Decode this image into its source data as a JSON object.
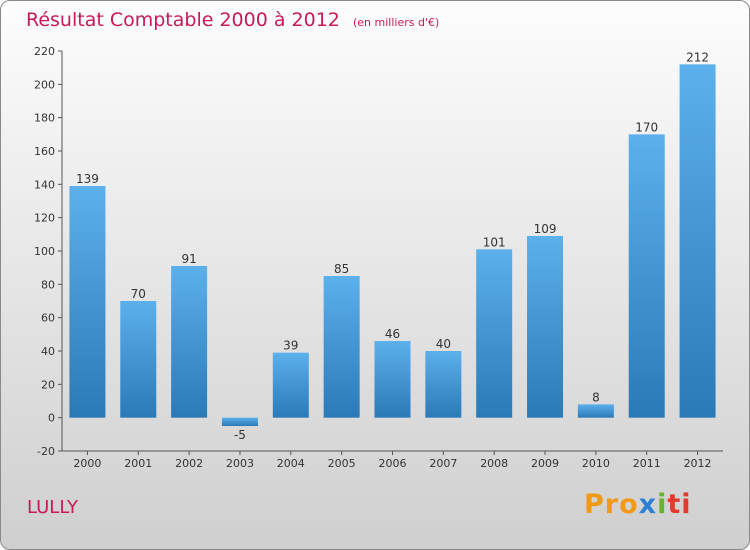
{
  "chart_data": {
    "type": "bar",
    "title": "Résultat Comptable 2000 à 2012",
    "subtitle": "(en milliers d'€)",
    "categories": [
      "2000",
      "2001",
      "2002",
      "2003",
      "2004",
      "2005",
      "2006",
      "2007",
      "2008",
      "2009",
      "2010",
      "2011",
      "2012"
    ],
    "values": [
      139,
      70,
      91,
      -5,
      39,
      85,
      46,
      40,
      101,
      109,
      8,
      170,
      212
    ],
    "data_labels": [
      "139",
      "70",
      "91",
      "-5",
      "39",
      "85",
      "46",
      "40",
      "101",
      "109",
      "8",
      "170",
      "212"
    ],
    "xlabel": "",
    "ylabel": "",
    "ylim": [
      -20,
      220
    ],
    "yticks": [
      -20,
      0,
      20,
      40,
      60,
      80,
      100,
      120,
      140,
      160,
      180,
      200,
      220
    ],
    "ytick_labels": [
      "-20",
      "0",
      "20",
      "40",
      "60",
      "80",
      "100",
      "120",
      "140",
      "160",
      "180",
      "200",
      "220"
    ],
    "grid": false,
    "legend": "none",
    "bar_color_top": "#5cb0ec",
    "bar_color_bottom": "#2a7ab8"
  },
  "footer": {
    "commune": "LULLY",
    "logo": {
      "p1": "Pro",
      "p2": "x",
      "p3": "i",
      "p4": "ti"
    }
  }
}
